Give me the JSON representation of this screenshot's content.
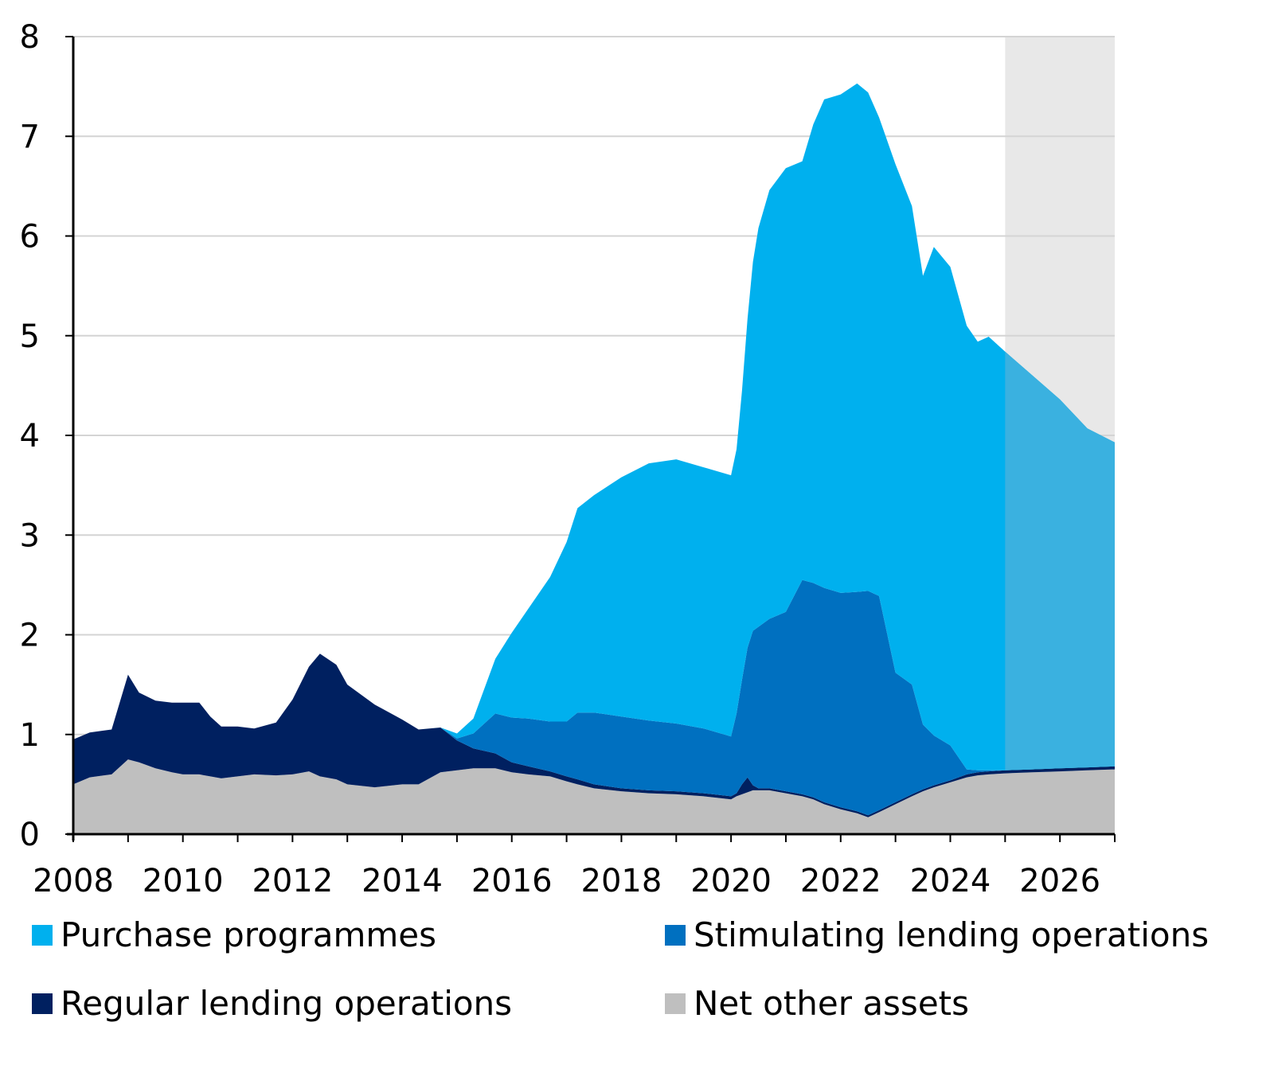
{
  "colors": {
    "purchase": "#00B0EE",
    "purchase_projection": "#3AB1E0",
    "stimulating": "#0070C0",
    "regular": "#002060",
    "net_other": "#BFBFBF",
    "projection_shade": "#E8E8E8",
    "grid": "#D4D4D4",
    "axis": "#000000"
  },
  "chart_data": {
    "type": "area",
    "stacked": true,
    "x_unit": "year",
    "xlim": [
      2008,
      2027
    ],
    "ylim": [
      0,
      8
    ],
    "y_ticks": [
      "0",
      "1",
      "2",
      "3",
      "4",
      "5",
      "6",
      "7",
      "8"
    ],
    "x_ticks": [
      "2008",
      "2010",
      "2012",
      "2014",
      "2016",
      "2018",
      "2020",
      "2022",
      "2024",
      "2026"
    ],
    "grid": "horizontal",
    "projection_from": 2025,
    "legend_position": "bottom",
    "x": [
      2008.0,
      2008.3,
      2008.7,
      2009.0,
      2009.2,
      2009.5,
      2009.8,
      2010.0,
      2010.3,
      2010.5,
      2010.7,
      2011.0,
      2011.3,
      2011.7,
      2012.0,
      2012.3,
      2012.5,
      2012.8,
      2013.0,
      2013.5,
      2014.0,
      2014.3,
      2014.7,
      2015.0,
      2015.3,
      2015.7,
      2016.0,
      2016.3,
      2016.7,
      2017.0,
      2017.2,
      2017.5,
      2018.0,
      2018.5,
      2019.0,
      2019.5,
      2020.0,
      2020.1,
      2020.2,
      2020.3,
      2020.4,
      2020.5,
      2020.7,
      2021.0,
      2021.3,
      2021.5,
      2021.7,
      2022.0,
      2022.3,
      2022.5,
      2022.7,
      2023.0,
      2023.3,
      2023.5,
      2023.7,
      2024.0,
      2024.3,
      2024.5,
      2024.7,
      2025.0,
      2025.5,
      2026.0,
      2026.5,
      2027.0
    ],
    "series": [
      {
        "name": "Net other assets",
        "values": [
          0.5,
          0.57,
          0.6,
          0.75,
          0.72,
          0.66,
          0.62,
          0.6,
          0.6,
          0.58,
          0.56,
          0.58,
          0.6,
          0.59,
          0.6,
          0.63,
          0.58,
          0.55,
          0.5,
          0.47,
          0.5,
          0.5,
          0.62,
          0.64,
          0.66,
          0.66,
          0.62,
          0.6,
          0.58,
          0.53,
          0.5,
          0.46,
          0.43,
          0.41,
          0.4,
          0.38,
          0.35,
          0.38,
          0.4,
          0.42,
          0.44,
          0.44,
          0.44,
          0.41,
          0.38,
          0.35,
          0.3,
          0.25,
          0.21,
          0.17,
          0.22,
          0.3,
          0.38,
          0.43,
          0.47,
          0.52,
          0.57,
          0.59,
          0.6,
          0.61,
          0.62,
          0.63,
          0.64,
          0.65
        ]
      },
      {
        "name": "Regular lending operations",
        "values": [
          0.45,
          0.45,
          0.45,
          0.85,
          0.7,
          0.68,
          0.7,
          0.72,
          0.72,
          0.6,
          0.52,
          0.5,
          0.46,
          0.53,
          0.75,
          1.05,
          1.23,
          1.15,
          1.0,
          0.83,
          0.65,
          0.55,
          0.45,
          0.3,
          0.2,
          0.15,
          0.1,
          0.08,
          0.05,
          0.05,
          0.05,
          0.04,
          0.03,
          0.03,
          0.03,
          0.03,
          0.03,
          0.03,
          0.1,
          0.15,
          0.05,
          0.02,
          0.02,
          0.02,
          0.02,
          0.02,
          0.02,
          0.02,
          0.02,
          0.02,
          0.02,
          0.02,
          0.02,
          0.02,
          0.02,
          0.02,
          0.03,
          0.03,
          0.03,
          0.03,
          0.03,
          0.03,
          0.03,
          0.03
        ]
      },
      {
        "name": "Stimulating lending operations",
        "values": [
          0,
          0,
          0,
          0,
          0,
          0,
          0,
          0,
          0,
          0,
          0,
          0,
          0,
          0,
          0,
          0,
          0,
          0,
          0,
          0,
          0,
          0,
          0,
          0.02,
          0.15,
          0.4,
          0.45,
          0.48,
          0.5,
          0.55,
          0.67,
          0.72,
          0.72,
          0.7,
          0.68,
          0.65,
          0.6,
          0.8,
          1.05,
          1.3,
          1.55,
          1.62,
          1.7,
          1.8,
          2.15,
          2.15,
          2.15,
          2.15,
          2.2,
          2.25,
          2.15,
          1.3,
          1.1,
          0.65,
          0.5,
          0.35,
          0.05,
          0.02,
          0.01,
          0,
          0,
          0,
          0,
          0
        ]
      },
      {
        "name": "Purchase programmes",
        "values": [
          0,
          0,
          0,
          0,
          0,
          0,
          0,
          0,
          0,
          0,
          0,
          0,
          0,
          0,
          0,
          0,
          0,
          0,
          0,
          0,
          0,
          0,
          0.0,
          0.05,
          0.15,
          0.55,
          0.85,
          1.1,
          1.45,
          1.8,
          2.05,
          2.18,
          2.4,
          2.58,
          2.65,
          2.62,
          2.62,
          2.65,
          2.9,
          3.3,
          3.7,
          4.0,
          4.3,
          4.45,
          4.2,
          4.6,
          4.9,
          5.0,
          5.1,
          5.0,
          4.8,
          5.1,
          4.8,
          4.5,
          4.9,
          4.8,
          4.45,
          4.3,
          4.35,
          4.2,
          3.95,
          3.7,
          3.4,
          3.25
        ]
      }
    ]
  },
  "legend": [
    {
      "key": "purchase",
      "label": "Purchase programmes"
    },
    {
      "key": "stimulating",
      "label": "Stimulating lending operations"
    },
    {
      "key": "regular",
      "label": "Regular lending operations"
    },
    {
      "key": "net_other",
      "label": "Net other assets"
    }
  ]
}
